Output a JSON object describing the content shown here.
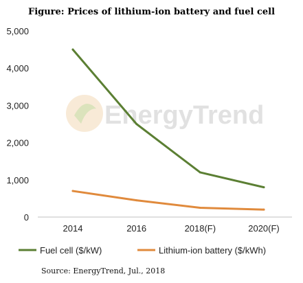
{
  "title": "Figure: Prices of lithium-ion battery and fuel cell",
  "source": "Source: EnergyTrend, Jul., 2018",
  "watermark": "EnergyTrend",
  "chart_data": {
    "type": "line",
    "categories": [
      "2014",
      "2016",
      "2018(F)",
      "2020(F)"
    ],
    "y_ticks": [
      "0",
      "1,000",
      "2,000",
      "3,000",
      "4,000",
      "5,000"
    ],
    "ylim": [
      0,
      5000
    ],
    "grid": false,
    "legend_position": "bottom",
    "series": [
      {
        "name": "Fuel cell ($/kW)",
        "color": "#5b7f33",
        "values": [
          4500,
          2500,
          1200,
          800
        ]
      },
      {
        "name": "Lithium-ion battery ($/kWh)",
        "color": "#e08a3c",
        "values": [
          700,
          450,
          250,
          200
        ]
      }
    ]
  }
}
